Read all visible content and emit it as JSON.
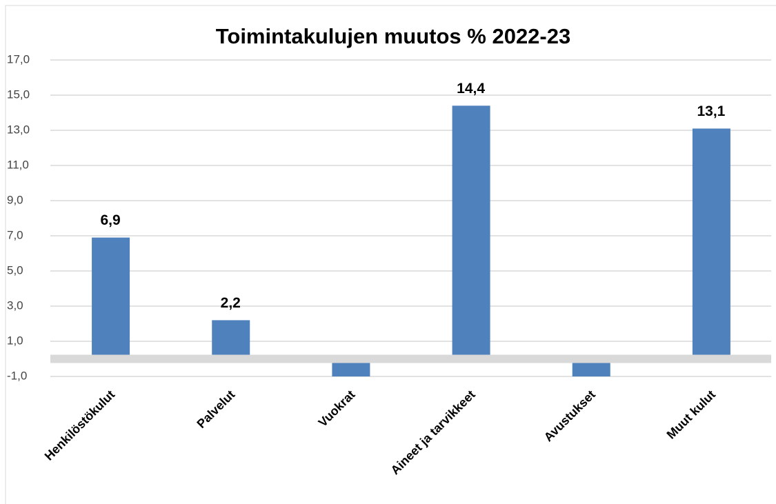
{
  "chart_data": {
    "type": "bar",
    "title": "Toimintakulujen muutos % 2022-23",
    "categories": [
      "Henkilöstökulut",
      "Palvelut",
      "Vuokrat",
      "Aineet ja tarvikkeet",
      "Avustukset",
      "Muut kulut"
    ],
    "values": [
      6.9,
      2.2,
      -1.0,
      14.4,
      -1.0,
      13.1
    ],
    "value_labels": [
      "6,9",
      "2,2",
      null,
      "14,4",
      null,
      "13,1"
    ],
    "color": "#4f81bd",
    "ylim": [
      -1,
      17
    ],
    "yticks": [
      {
        "value": -1,
        "label": "-1,0"
      },
      {
        "value": 1,
        "label": "1,0"
      },
      {
        "value": 3,
        "label": "3,0"
      },
      {
        "value": 5,
        "label": "5,0"
      },
      {
        "value": 7,
        "label": "7,0"
      },
      {
        "value": 9,
        "label": "9,0"
      },
      {
        "value": 11,
        "label": "11,0"
      },
      {
        "value": 13,
        "label": "13,0"
      },
      {
        "value": 15,
        "label": "15,0"
      },
      {
        "value": 17,
        "label": "17,0"
      }
    ],
    "grid": true
  }
}
